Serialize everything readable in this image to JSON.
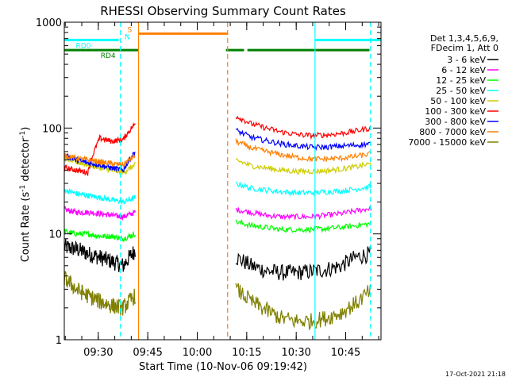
{
  "chart_data": {
    "type": "line",
    "title": "RHESSI Observing Summary Count Rates",
    "xlabel": "Start Time (10-Nov-06 09:19:42)",
    "ylabel_main": "Count Rate (s",
    "ylabel_sup1": "-1",
    "ylabel_mid": " detector",
    "ylabel_sup2": "-1",
    "ylabel_end": ")",
    "y_scale": "log",
    "ylim": [
      1,
      1000
    ],
    "xlim_minutes": [
      0,
      96
    ],
    "x_ticks": [
      {
        "minute": 10.3,
        "label": "09:30"
      },
      {
        "minute": 25.3,
        "label": "09:45"
      },
      {
        "minute": 40.3,
        "label": "10:00"
      },
      {
        "minute": 55.3,
        "label": "10:15"
      },
      {
        "minute": 70.3,
        "label": "10:30"
      },
      {
        "minute": 85.3,
        "label": "10:45"
      }
    ],
    "y_ticks": [
      {
        "value": 1,
        "label": "1"
      },
      {
        "value": 10,
        "label": "10"
      },
      {
        "value": 100,
        "label": "100"
      },
      {
        "value": 1000,
        "label": "1000"
      }
    ],
    "legend_header": [
      "Det 1,3,4,5,6,9,",
      "FDecim 1, Att 0"
    ],
    "series": [
      {
        "name": "3 - 6 keV",
        "color": "#000000",
        "first": [
          7.5,
          7.2,
          6.5,
          6.0,
          5.5,
          5.0,
          7.0
        ],
        "second": [
          6.0,
          5.0,
          4.5,
          4.3,
          4.3,
          4.4,
          4.6,
          5.0,
          6.0,
          6.5
        ]
      },
      {
        "name": "6 - 12 keV",
        "color": "#ff00ff",
        "first": [
          17,
          16,
          16,
          15.5,
          15,
          14.5,
          16
        ],
        "second": [
          17,
          16,
          15,
          14.5,
          14.5,
          14.5,
          15,
          15.5,
          16.5,
          17.5
        ]
      },
      {
        "name": "12 - 25 keV",
        "color": "#00ff00",
        "first": [
          10.5,
          10,
          10,
          9.5,
          9.5,
          9,
          10
        ],
        "second": [
          13,
          12,
          11.5,
          11,
          11,
          11,
          11.2,
          11.5,
          12,
          12.5
        ]
      },
      {
        "name": "25 - 50 keV",
        "color": "#00ffff",
        "first": [
          26,
          24,
          23,
          22,
          21,
          20,
          22
        ],
        "second": [
          30,
          27,
          26,
          25,
          24.5,
          24.5,
          25,
          25.5,
          26.5,
          28
        ]
      },
      {
        "name": "50 - 100 keV",
        "color": "#cccc00",
        "first": [
          52,
          48,
          45,
          42,
          40,
          38,
          45
        ],
        "second": [
          50,
          44,
          42,
          40,
          39,
          39,
          39.5,
          41,
          43,
          46
        ]
      },
      {
        "name": "100 - 300 keV",
        "color": "#ff0000",
        "first": [
          42,
          40,
          38,
          80,
          75,
          78,
          110
        ],
        "second": [
          130,
          110,
          100,
          92,
          87,
          85,
          86,
          89,
          94,
          100
        ]
      },
      {
        "name": "300 - 800 keV",
        "color": "#0000ff",
        "first": [
          55,
          50,
          47,
          45,
          42,
          40,
          60
        ],
        "second": [
          95,
          82,
          76,
          71,
          68,
          66,
          66,
          67.5,
          69,
          71
        ]
      },
      {
        "name": "800 - 7000 keV",
        "color": "#ff8000",
        "first": [
          55,
          52,
          50,
          48,
          46,
          45,
          55
        ],
        "second": [
          75,
          65,
          60,
          56,
          53,
          51,
          51,
          52,
          54,
          57
        ]
      },
      {
        "name": "7000 - 15000 keV",
        "color": "#808000",
        "first": [
          3.8,
          3.0,
          2.6,
          2.3,
          2.1,
          2.0,
          2.6
        ],
        "second": [
          3.0,
          2.3,
          1.9,
          1.6,
          1.5,
          1.5,
          1.6,
          1.8,
          2.2,
          2.9
        ]
      }
    ],
    "annotations": {
      "flags": [
        {
          "label": "RD0",
          "color": "#00ffff",
          "level": 680,
          "segments": [
            [
              0,
              16.5
            ],
            [
              76,
              96
            ]
          ]
        },
        {
          "label": "RD4",
          "color": "#008000",
          "level": 545,
          "segments": [
            [
              0,
              22.5
            ],
            [
              49,
              54.5
            ],
            [
              55.5,
              92.5
            ]
          ]
        },
        {
          "label": "S",
          "color": "#ff8000",
          "level": 780,
          "segments": [
            [
              22.5,
              49.5
            ]
          ]
        }
      ],
      "n_label": "N",
      "n_color": "#00ffff"
    },
    "vertical_lines": [
      {
        "minute": 17.0,
        "color": "#00ffff",
        "dashed": true
      },
      {
        "minute": 22.5,
        "color": "#ff8000",
        "dashed": false
      },
      {
        "minute": 49.5,
        "color": "#ff8000",
        "dashed": true
      },
      {
        "minute": 76.0,
        "color": "#00ffff",
        "dashed": false
      },
      {
        "minute": 92.8,
        "color": "#00ffff",
        "dashed": true
      }
    ],
    "gap_minutes": [
      23.5,
      51.5
    ],
    "first_window": [
      0,
      21.5
    ],
    "second_window": [
      52,
      93
    ]
  },
  "footer": {
    "timestamp": "17-Oct-2021 21:18"
  }
}
